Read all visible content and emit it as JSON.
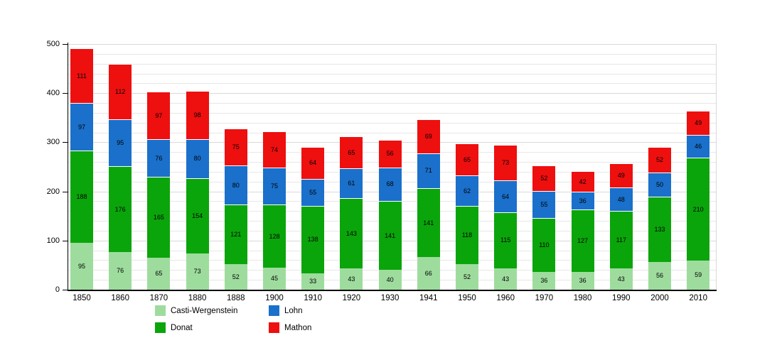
{
  "chart_data": {
    "type": "bar",
    "stacked": true,
    "title": "",
    "xlabel": "",
    "ylabel": "",
    "categories": [
      "1850",
      "1860",
      "1870",
      "1880",
      "1888",
      "1900",
      "1910",
      "1920",
      "1930",
      "1941",
      "1950",
      "1960",
      "1970",
      "1980",
      "1990",
      "2000",
      "2010"
    ],
    "series": [
      {
        "name": "Casti-Wergenstein",
        "color": "#9edc9e",
        "values": [
          95,
          76,
          65,
          73,
          52,
          45,
          33,
          43,
          40,
          66,
          52,
          43,
          36,
          36,
          43,
          56,
          59
        ]
      },
      {
        "name": "Donat",
        "color": "#0aa50a",
        "values": [
          188,
          176,
          165,
          154,
          121,
          128,
          138,
          143,
          141,
          141,
          118,
          115,
          110,
          127,
          117,
          133,
          210
        ]
      },
      {
        "name": "Lohn",
        "color": "#1a70ca",
        "values": [
          97,
          95,
          76,
          80,
          80,
          75,
          55,
          61,
          68,
          71,
          62,
          64,
          55,
          36,
          48,
          50,
          46
        ]
      },
      {
        "name": "Mathon",
        "color": "#ee0f0f",
        "values": [
          111,
          112,
          97,
          98,
          75,
          74,
          64,
          65,
          56,
          69,
          65,
          73,
          52,
          42,
          49,
          52,
          49
        ]
      }
    ],
    "ylim": [
      0,
      500
    ],
    "yticks": [
      "0",
      "100",
      "200",
      "300",
      "400",
      "500"
    ],
    "ytick_step": 100,
    "minor_grid_step": 20,
    "grid": true,
    "legend_position": "bottom-left",
    "value_labels": "inside-segments"
  }
}
